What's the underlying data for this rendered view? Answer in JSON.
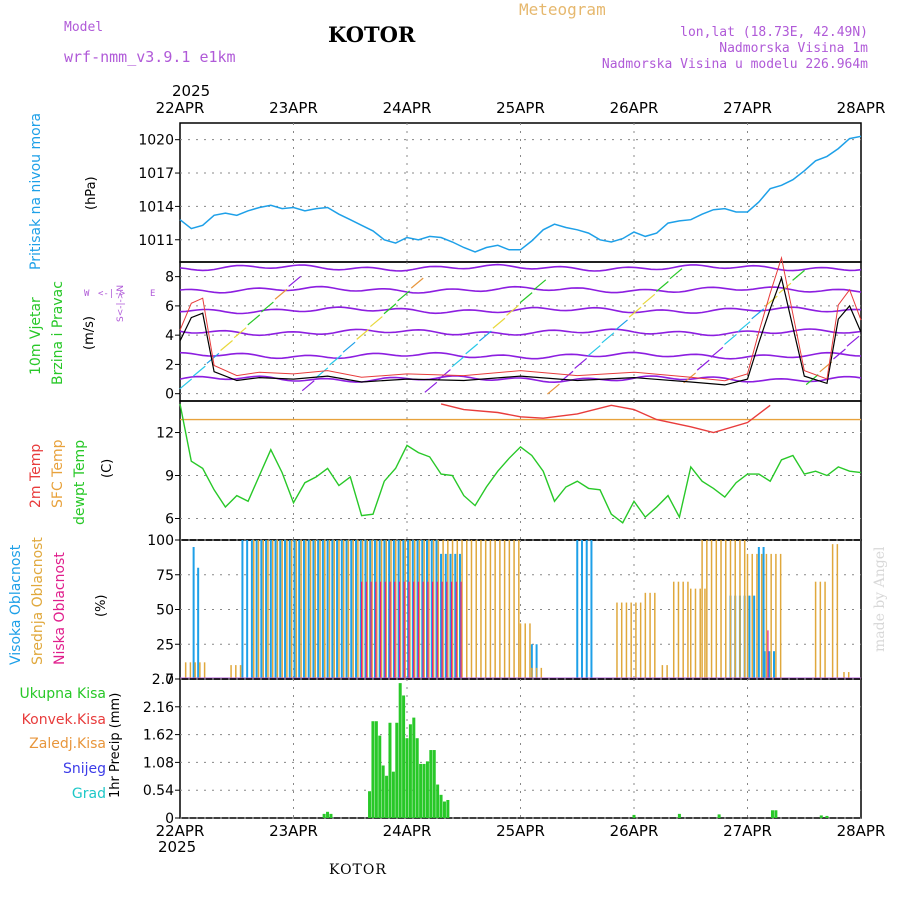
{
  "header": {
    "model_label": "Model",
    "model_name": "wrf-nmm_v3.9.1 e1km",
    "location": "KOTOR",
    "product": "Meteogram",
    "lonlat": "lon,lat (18.73E, 42.49N)",
    "altitude": "Nadmorska Visina 1m",
    "model_altitude": "Nadmorska Visina u modelu 226.964m",
    "year": "2025",
    "watermark": "made by Angel",
    "footer": "KOTOR"
  },
  "colors": {
    "pressure": "#1ea0e8",
    "temp2m": "#e83c3c",
    "sfc_temp": "#e8a23c",
    "dewpoint": "#28c828",
    "high_cloud": "#1ea0e8",
    "mid_cloud": "#e0a83c",
    "low_cloud": "#e01e8c",
    "precip": "#28c828",
    "wind_lines": "#8c1ee0",
    "label_green": "#28c828",
    "label_red": "#e83c3c",
    "label_orange": "#e8963c",
    "label_blue": "#3c3ce8",
    "label_cyan": "#1ec8c8",
    "label_purple": "#b05ad8"
  },
  "chart_data": [
    {
      "type": "line",
      "name": "pressure",
      "ylabel_main": "Pritisak na nivou mora",
      "ylabel_unit": "(hPa)",
      "x_ticks": [
        "22APR",
        "23APR",
        "24APR",
        "25APR",
        "26APR",
        "27APR",
        "28APR"
      ],
      "yticks": [
        1011,
        1014,
        1017,
        1020
      ],
      "ylim": [
        1009,
        1021.5
      ],
      "grid": true,
      "x": [
        0,
        0.1,
        0.2,
        0.3,
        0.4,
        0.5,
        0.6,
        0.7,
        0.8,
        0.9,
        1.0,
        1.1,
        1.2,
        1.3,
        1.4,
        1.5,
        1.6,
        1.7,
        1.8,
        1.9,
        2.0,
        2.1,
        2.2,
        2.3,
        2.4,
        2.5,
        2.6,
        2.7,
        2.8,
        2.9,
        3.0,
        3.1,
        3.2,
        3.3,
        3.4,
        3.5,
        3.6,
        3.7,
        3.8,
        3.9,
        4.0,
        4.1,
        4.2,
        4.3,
        4.4,
        4.5,
        4.6,
        4.7,
        4.8,
        4.9,
        5.0,
        5.1,
        5.2,
        5.3,
        5.4,
        5.5,
        5.6,
        5.7,
        5.8,
        5.9,
        6.0
      ],
      "values": [
        1012.8,
        1012.0,
        1012.3,
        1013.2,
        1013.4,
        1013.2,
        1013.6,
        1013.9,
        1014.1,
        1013.8,
        1013.9,
        1013.6,
        1013.8,
        1013.9,
        1013.3,
        1012.8,
        1012.3,
        1011.8,
        1011.0,
        1010.7,
        1011.2,
        1011.0,
        1011.3,
        1011.2,
        1010.8,
        1010.3,
        1009.9,
        1010.3,
        1010.5,
        1010.1,
        1010.1,
        1010.9,
        1011.9,
        1012.4,
        1012.1,
        1011.9,
        1011.6,
        1011.0,
        1010.8,
        1011.1,
        1011.7,
        1011.3,
        1011.6,
        1012.5,
        1012.7,
        1012.8,
        1013.3,
        1013.7,
        1013.8,
        1013.5,
        1013.5,
        1014.4,
        1015.6,
        1015.9,
        1016.4,
        1017.2,
        1018.1,
        1018.5,
        1019.2,
        1020.1,
        1020.3
      ]
    },
    {
      "type": "line",
      "name": "wind",
      "ylabel_main": "10m Vjetar",
      "ylabel_sub": "Brzina i Pravac",
      "ylabel_unit": "(m/s)",
      "compass": [
        "W",
        "<-|->",
        "E",
        "S<-|->N"
      ],
      "yticks": [
        0,
        2,
        4,
        6,
        8
      ],
      "ylim": [
        -0.5,
        9
      ],
      "grid": true,
      "x": [
        0,
        0.1,
        0.2,
        0.3,
        0.5,
        0.7,
        1.0,
        1.3,
        1.6,
        2.0,
        2.5,
        3.0,
        3.5,
        4.0,
        4.5,
        4.8,
        5.0,
        5.1,
        5.2,
        5.3,
        5.5,
        5.7,
        5.8,
        5.9,
        6.0
      ],
      "values": [
        3.6,
        5.2,
        5.5,
        1.5,
        0.9,
        1.1,
        1.0,
        1.2,
        0.8,
        1.0,
        0.9,
        1.2,
        0.9,
        1.1,
        0.8,
        0.6,
        1.0,
        3.5,
        5.8,
        7.9,
        1.2,
        0.7,
        5.1,
        6.0,
        4.2
      ]
    },
    {
      "type": "line",
      "name": "temperature",
      "ylabel_lines": [
        "2m Temp",
        "SFC Temp",
        "dewpt Temp"
      ],
      "ylabel_unit": "(C)",
      "yticks": [
        6,
        9,
        12
      ],
      "ylim": [
        4.5,
        14.2
      ],
      "grid": true,
      "series": [
        {
          "name": "SFC Temp",
          "x": [
            0,
            6
          ],
          "values": [
            12.9,
            12.9
          ]
        },
        {
          "name": "2m Temp",
          "x": [
            2.3,
            2.5,
            2.8,
            3.0,
            3.2,
            3.5,
            3.8,
            4.0,
            4.2,
            4.5,
            4.7,
            5.0,
            5.2
          ],
          "values": [
            14.0,
            13.6,
            13.4,
            13.1,
            13.0,
            13.3,
            13.9,
            13.6,
            12.9,
            12.4,
            12.0,
            12.7,
            13.9
          ]
        },
        {
          "name": "dewpt Temp",
          "x": [
            0,
            0.1,
            0.2,
            0.3,
            0.4,
            0.5,
            0.6,
            0.7,
            0.8,
            0.9,
            1.0,
            1.1,
            1.2,
            1.3,
            1.4,
            1.5,
            1.6,
            1.7,
            1.8,
            1.9,
            2.0,
            2.1,
            2.2,
            2.3,
            2.4,
            2.5,
            2.6,
            2.7,
            2.8,
            2.9,
            3.0,
            3.1,
            3.2,
            3.3,
            3.4,
            3.5,
            3.6,
            3.7,
            3.8,
            3.9,
            4.0,
            4.1,
            4.2,
            4.3,
            4.4,
            4.5,
            4.6,
            4.7,
            4.8,
            4.9,
            5.0,
            5.1,
            5.2,
            5.3,
            5.4,
            5.5,
            5.6,
            5.7,
            5.8,
            5.9,
            6.0
          ],
          "values": [
            14.0,
            10.0,
            9.5,
            8.0,
            6.8,
            7.6,
            7.2,
            9.0,
            10.8,
            9.2,
            7.1,
            8.5,
            8.9,
            9.5,
            8.3,
            8.9,
            6.2,
            6.3,
            8.6,
            9.5,
            11.1,
            10.6,
            10.3,
            9.1,
            9.0,
            7.6,
            6.9,
            8.2,
            9.3,
            10.2,
            11.0,
            10.4,
            9.3,
            7.2,
            8.2,
            8.6,
            8.1,
            8.0,
            6.3,
            5.7,
            7.2,
            6.1,
            6.8,
            7.6,
            6.1,
            9.6,
            8.6,
            8.1,
            7.5,
            8.5,
            9.1,
            9.1,
            8.6,
            10.1,
            10.4,
            9.1,
            9.3,
            9.0,
            9.6,
            9.3,
            9.2
          ]
        }
      ]
    },
    {
      "type": "bar",
      "name": "clouds",
      "ylabel_lines": [
        "Visoka Oblacnost",
        "Srednja Oblacnost",
        "Niska Oblacnost"
      ],
      "ylabel_unit": "(%)",
      "yticks": [
        0,
        25,
        50,
        75,
        100
      ],
      "ylim": [
        0,
        100
      ],
      "grid": true,
      "series": [
        {
          "name": "Visoka Oblacnost",
          "segments": [
            [
              0.12,
              0.16,
              95
            ],
            [
              0.16,
              0.2,
              80
            ],
            [
              0.55,
              2.3,
              100
            ],
            [
              2.3,
              2.5,
              90
            ],
            [
              3.1,
              3.15,
              25
            ],
            [
              3.5,
              3.65,
              100
            ],
            [
              4.85,
              5.1,
              60
            ],
            [
              5.1,
              5.15,
              95
            ],
            [
              5.15,
              5.25,
              20
            ]
          ]
        },
        {
          "name": "Srednja Oblacnost",
          "segments": [
            [
              0.05,
              0.25,
              12
            ],
            [
              0.45,
              0.55,
              10
            ],
            [
              0.65,
              3.0,
              100
            ],
            [
              3.0,
              3.1,
              40
            ],
            [
              3.1,
              3.2,
              8
            ],
            [
              3.85,
              4.1,
              55
            ],
            [
              4.1,
              4.2,
              62
            ],
            [
              4.25,
              4.3,
              10
            ],
            [
              4.35,
              4.5,
              70
            ],
            [
              4.5,
              4.65,
              65
            ],
            [
              4.6,
              5.0,
              100
            ],
            [
              5.0,
              5.3,
              90
            ],
            [
              5.6,
              5.7,
              70
            ],
            [
              5.75,
              5.8,
              97
            ],
            [
              5.85,
              5.9,
              5
            ]
          ]
        },
        {
          "name": "Niska Oblacnost",
          "segments": [
            [
              1.6,
              2.5,
              70
            ],
            [
              5.18,
              5.21,
              35
            ]
          ]
        }
      ]
    },
    {
      "type": "bar",
      "name": "precip",
      "ylabel_main": "1hr Precip (mm)",
      "legend": [
        "Ukupna Kisa",
        "Konvek.Kisa",
        "Zaledj.Kisa",
        "Snijeg",
        "Grad"
      ],
      "yticks": [
        0,
        0.54,
        1.08,
        1.62,
        2.16,
        2.7
      ],
      "ylim": [
        0,
        2.7
      ],
      "grid": true,
      "x": [
        1.27,
        1.3,
        1.33,
        1.67,
        1.7,
        1.73,
        1.76,
        1.79,
        1.82,
        1.85,
        1.88,
        1.91,
        1.94,
        1.97,
        2.0,
        2.03,
        2.06,
        2.09,
        2.12,
        2.15,
        2.18,
        2.21,
        2.24,
        2.27,
        2.3,
        2.33,
        2.36,
        4.0,
        4.4,
        4.75,
        5.22,
        5.25,
        5.65,
        5.7
      ],
      "values": [
        0.08,
        0.12,
        0.08,
        0.52,
        1.88,
        1.88,
        1.6,
        1.02,
        0.82,
        1.85,
        0.9,
        1.85,
        2.62,
        2.38,
        1.55,
        1.82,
        1.95,
        1.55,
        1.05,
        1.05,
        1.1,
        1.32,
        1.32,
        0.65,
        0.45,
        0.32,
        0.35,
        0.06,
        0.08,
        0.07,
        0.15,
        0.15,
        0.05,
        0.04
      ]
    }
  ]
}
